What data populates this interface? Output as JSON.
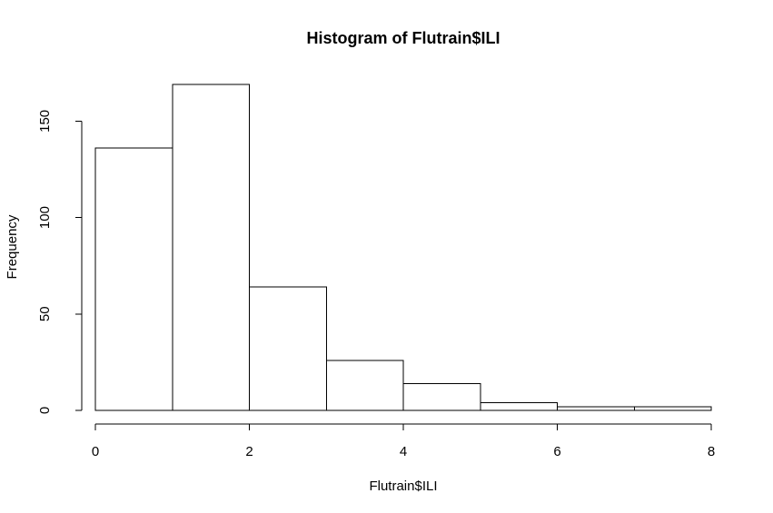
{
  "chart_data": {
    "type": "bar",
    "title": "Histogram of Flutrain$ILI",
    "xlabel": "Flutrain$ILI",
    "ylabel": "Frequency",
    "bins": [
      {
        "from": 0,
        "to": 1,
        "value": 136
      },
      {
        "from": 1,
        "to": 2,
        "value": 169
      },
      {
        "from": 2,
        "to": 3,
        "value": 64
      },
      {
        "from": 3,
        "to": 4,
        "value": 26
      },
      {
        "from": 4,
        "to": 5,
        "value": 14
      },
      {
        "from": 5,
        "to": 6,
        "value": 4
      },
      {
        "from": 6,
        "to": 7,
        "value": 2
      },
      {
        "from": 7,
        "to": 8,
        "value": 2
      }
    ],
    "xlim": [
      0,
      8
    ],
    "ylim": [
      0,
      169
    ],
    "x_ticks": [
      0,
      2,
      4,
      6,
      8
    ],
    "y_ticks": [
      0,
      50,
      100,
      150
    ],
    "grid": false,
    "bar_fill": "#ffffff",
    "bar_stroke": "#000000"
  }
}
